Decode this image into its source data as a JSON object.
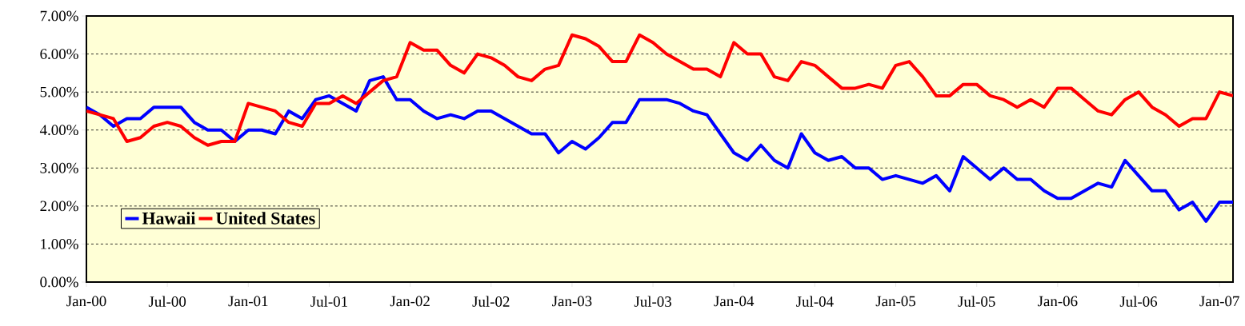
{
  "chart_data": {
    "type": "line",
    "x": [
      "2000-01",
      "2000-02",
      "2000-03",
      "2000-04",
      "2000-05",
      "2000-06",
      "2000-07",
      "2000-08",
      "2000-09",
      "2000-10",
      "2000-11",
      "2000-12",
      "2001-01",
      "2001-02",
      "2001-03",
      "2001-04",
      "2001-05",
      "2001-06",
      "2001-07",
      "2001-08",
      "2001-09",
      "2001-10",
      "2001-11",
      "2001-12",
      "2002-01",
      "2002-02",
      "2002-03",
      "2002-04",
      "2002-05",
      "2002-06",
      "2002-07",
      "2002-08",
      "2002-09",
      "2002-10",
      "2002-11",
      "2002-12",
      "2003-01",
      "2003-02",
      "2003-03",
      "2003-04",
      "2003-05",
      "2003-06",
      "2003-07",
      "2003-08",
      "2003-09",
      "2003-10",
      "2003-11",
      "2003-12",
      "2004-01",
      "2004-02",
      "2004-03",
      "2004-04",
      "2004-05",
      "2004-06",
      "2004-07",
      "2004-08",
      "2004-09",
      "2004-10",
      "2004-11",
      "2004-12",
      "2005-01",
      "2005-02",
      "2005-03",
      "2005-04",
      "2005-05",
      "2005-06",
      "2005-07",
      "2005-08",
      "2005-09",
      "2005-10",
      "2005-11",
      "2005-12",
      "2006-01",
      "2006-02",
      "2006-03",
      "2006-04",
      "2006-05",
      "2006-06",
      "2006-07",
      "2006-08",
      "2006-09",
      "2006-10",
      "2006-11",
      "2006-12",
      "2007-01",
      "2007-02"
    ],
    "series": [
      {
        "name": "Hawaii",
        "color": "#0000ff",
        "values": [
          4.6,
          4.4,
          4.1,
          4.3,
          4.3,
          4.6,
          4.6,
          4.6,
          4.2,
          4.0,
          4.0,
          3.7,
          4.0,
          4.0,
          3.9,
          4.5,
          4.3,
          4.8,
          4.9,
          4.7,
          4.5,
          5.3,
          5.4,
          4.8,
          4.8,
          4.5,
          4.3,
          4.4,
          4.3,
          4.5,
          4.5,
          4.3,
          4.1,
          3.9,
          3.9,
          3.4,
          3.7,
          3.5,
          3.8,
          4.2,
          4.2,
          4.8,
          4.8,
          4.8,
          4.7,
          4.5,
          4.4,
          3.9,
          3.4,
          3.2,
          3.6,
          3.2,
          3.0,
          3.9,
          3.4,
          3.2,
          3.3,
          3.0,
          3.0,
          2.7,
          2.8,
          2.7,
          2.6,
          2.8,
          2.4,
          3.3,
          3.0,
          2.7,
          3.0,
          2.7,
          2.7,
          2.4,
          2.2,
          2.2,
          2.4,
          2.6,
          2.5,
          3.2,
          2.8,
          2.4,
          2.4,
          1.9,
          2.1,
          1.6,
          2.1,
          2.1
        ]
      },
      {
        "name": "United States",
        "color": "#ff0000",
        "values": [
          4.5,
          4.4,
          4.3,
          3.7,
          3.8,
          4.1,
          4.2,
          4.1,
          3.8,
          3.6,
          3.7,
          3.7,
          4.7,
          4.6,
          4.5,
          4.2,
          4.1,
          4.7,
          4.7,
          4.9,
          4.7,
          5.0,
          5.3,
          5.4,
          6.3,
          6.1,
          6.1,
          5.7,
          5.5,
          6.0,
          5.9,
          5.7,
          5.4,
          5.3,
          5.6,
          5.7,
          6.5,
          6.4,
          6.2,
          5.8,
          5.8,
          6.5,
          6.3,
          6.0,
          5.8,
          5.6,
          5.6,
          5.4,
          6.3,
          6.0,
          6.0,
          5.4,
          5.3,
          5.8,
          5.7,
          5.4,
          5.1,
          5.1,
          5.2,
          5.1,
          5.7,
          5.8,
          5.4,
          4.9,
          4.9,
          5.2,
          5.2,
          4.9,
          4.8,
          4.6,
          4.8,
          4.6,
          5.1,
          5.1,
          4.8,
          4.5,
          4.4,
          4.8,
          5.0,
          4.6,
          4.4,
          4.1,
          4.3,
          4.3,
          5.0,
          4.9
        ]
      }
    ],
    "xlim": [
      "2000-01",
      "2007-02"
    ],
    "xticks": [
      {
        "value": "2000-01",
        "label": "Jan-00"
      },
      {
        "value": "2000-07",
        "label": "Jul-00"
      },
      {
        "value": "2001-01",
        "label": "Jan-01"
      },
      {
        "value": "2001-07",
        "label": "Jul-01"
      },
      {
        "value": "2002-01",
        "label": "Jan-02"
      },
      {
        "value": "2002-07",
        "label": "Jul-02"
      },
      {
        "value": "2003-01",
        "label": "Jan-03"
      },
      {
        "value": "2003-07",
        "label": "Jul-03"
      },
      {
        "value": "2004-01",
        "label": "Jan-04"
      },
      {
        "value": "2004-07",
        "label": "Jul-04"
      },
      {
        "value": "2005-01",
        "label": "Jan-05"
      },
      {
        "value": "2005-07",
        "label": "Jul-05"
      },
      {
        "value": "2006-01",
        "label": "Jan-06"
      },
      {
        "value": "2006-07",
        "label": "Jul-06"
      },
      {
        "value": "2007-01",
        "label": "Jan-07"
      }
    ],
    "ylim": [
      0,
      7
    ],
    "yticks": [
      {
        "value": 0,
        "label": "0.00%"
      },
      {
        "value": 1,
        "label": "1.00%"
      },
      {
        "value": 2,
        "label": "2.00%"
      },
      {
        "value": 3,
        "label": "3.00%"
      },
      {
        "value": 4,
        "label": "4.00%"
      },
      {
        "value": 5,
        "label": "5.00%"
      },
      {
        "value": 6,
        "label": "6.00%"
      },
      {
        "value": 7,
        "label": "7.00%"
      }
    ],
    "grid": "y",
    "legend": "bottom left",
    "line_style": "solid",
    "marker": "none"
  }
}
